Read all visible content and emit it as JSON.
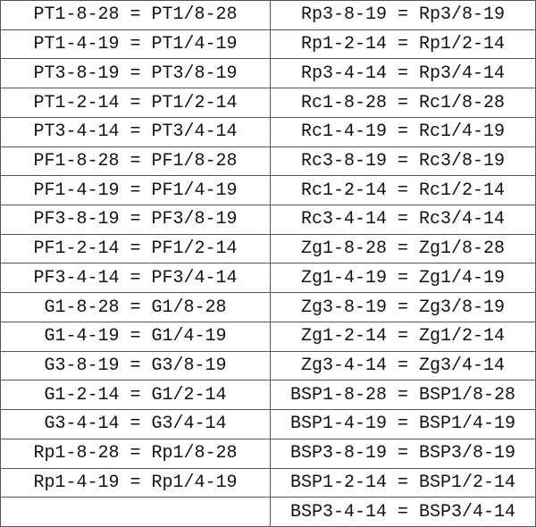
{
  "table": {
    "left": [
      "PT1-8-28 = PT1/8-28",
      "PT1-4-19 = PT1/4-19",
      "PT3-8-19 = PT3/8-19",
      "PT1-2-14 = PT1/2-14",
      "PT3-4-14 = PT3/4-14",
      "PF1-8-28 = PF1/8-28",
      "PF1-4-19 = PF1/4-19",
      "PF3-8-19 = PF3/8-19",
      "PF1-2-14 = PF1/2-14",
      "PF3-4-14 = PF3/4-14",
      "G1-8-28 = G1/8-28",
      "G1-4-19 = G1/4-19",
      "G3-8-19 = G3/8-19",
      "G1-2-14 = G1/2-14",
      "G3-4-14 = G3/4-14",
      "Rp1-8-28 = Rp1/8-28",
      "Rp1-4-19 = Rp1/4-19"
    ],
    "right": [
      "Rp3-8-19 = Rp3/8-19",
      "Rp1-2-14 = Rp1/2-14",
      "Rp3-4-14 = Rp3/4-14",
      "Rc1-8-28 = Rc1/8-28",
      "Rc1-4-19 = Rc1/4-19",
      "Rc3-8-19 = Rc3/8-19",
      "Rc1-2-14 = Rc1/2-14",
      "Rc3-4-14 = Rc3/4-14",
      "Zg1-8-28 = Zg1/8-28",
      "Zg1-4-19 = Zg1/4-19",
      "Zg3-8-19 = Zg3/8-19",
      "Zg1-2-14 = Zg1/2-14",
      "Zg3-4-14 = Zg3/4-14",
      "BSP1-8-28 = BSP1/8-28",
      "BSP1-4-19 = BSP1/4-19",
      "BSP3-8-19 = BSP3/8-19",
      "BSP1-2-14 = BSP1/2-14",
      "BSP3-4-14 = BSP3/4-14"
    ]
  }
}
